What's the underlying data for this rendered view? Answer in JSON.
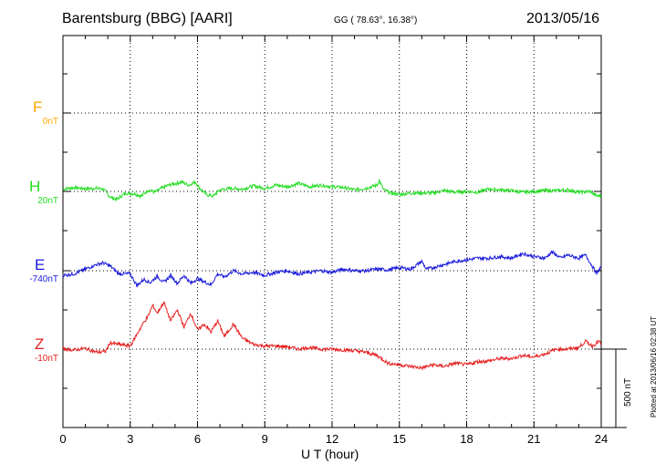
{
  "header": {
    "title": "Barentsburg (BBG)  [AARI]",
    "coords": "GG ( 78.63°,  16.38°)",
    "date": "2013/05/16"
  },
  "footer": {
    "xlabel": "U T (hour)",
    "credit": "Plotted at 2013/06/16 02:38 UT",
    "scale_label": "500 nT"
  },
  "chart_data": {
    "type": "line",
    "title": "Barentsburg (BBG)  [AARI]",
    "xlabel": "U T (hour)",
    "xlim": [
      0,
      24
    ],
    "x_ticks": [
      0,
      3,
      6,
      9,
      12,
      15,
      18,
      21,
      24
    ],
    "y_units": "nT",
    "scale_bar_nT": 500,
    "grid": true,
    "series": [
      {
        "name": "F",
        "baseline_label": "0nT",
        "color": "#ffa500",
        "values": []
      },
      {
        "name": "H",
        "baseline_label": "20nT",
        "color": "#22dd22",
        "x": [
          0,
          0.5,
          1,
          1.5,
          1.8,
          2.1,
          2.4,
          2.8,
          3.2,
          3.5,
          3.8,
          4.1,
          4.4,
          4.7,
          5,
          5.3,
          5.6,
          5.9,
          6.1,
          6.4,
          6.7,
          7,
          7.5,
          8,
          8.5,
          9,
          9.5,
          10,
          10.5,
          11,
          11.5,
          12,
          12.5,
          13,
          13.5,
          14,
          14.1,
          14.3,
          14.6,
          15,
          15.5,
          16,
          16.5,
          17,
          17.5,
          18,
          18.5,
          19,
          19.5,
          20,
          20.5,
          21,
          21.5,
          22,
          22.5,
          23,
          23.5,
          23.8,
          24
        ],
        "values": [
          15,
          25,
          18,
          20,
          15,
          -35,
          -50,
          -10,
          -15,
          -30,
          10,
          -5,
          20,
          40,
          50,
          60,
          40,
          60,
          20,
          -20,
          -30,
          10,
          20,
          15,
          35,
          20,
          40,
          30,
          50,
          30,
          40,
          30,
          25,
          10,
          20,
          40,
          70,
          10,
          -10,
          -20,
          -10,
          -10,
          -10,
          5,
          -5,
          0,
          -5,
          15,
          10,
          5,
          -5,
          0,
          5,
          5,
          10,
          -5,
          0,
          -30,
          -25
        ]
      },
      {
        "name": "E",
        "baseline_label": "-740nT",
        "color": "#1a1add",
        "x": [
          0,
          0.5,
          1,
          1.5,
          1.8,
          2.1,
          2.5,
          3,
          3.3,
          3.6,
          3.9,
          4.2,
          4.5,
          4.8,
          5.1,
          5.4,
          5.7,
          6,
          6.3,
          6.6,
          6.9,
          7.2,
          7.6,
          8,
          8.5,
          9,
          9.5,
          10,
          10.5,
          11,
          11.5,
          12,
          12.5,
          13,
          13.5,
          14,
          14.5,
          15,
          15.5,
          16,
          16.2,
          16.5,
          17,
          17.5,
          18,
          18.5,
          19,
          19.5,
          20,
          20.5,
          21,
          21.5,
          21.8,
          22.2,
          22.5,
          23,
          23.3,
          23.6,
          23.8,
          24
        ],
        "values": [
          -30,
          -20,
          10,
          40,
          50,
          30,
          -20,
          -20,
          -95,
          -55,
          -75,
          -35,
          -75,
          -30,
          -80,
          -30,
          -80,
          -50,
          -70,
          -90,
          -20,
          -40,
          0,
          -20,
          -10,
          -30,
          -10,
          0,
          -20,
          -10,
          0,
          -10,
          10,
          0,
          0,
          10,
          5,
          20,
          10,
          60,
          10,
          20,
          40,
          60,
          70,
          80,
          80,
          90,
          80,
          110,
          90,
          80,
          120,
          80,
          100,
          80,
          100,
          30,
          -20,
          30
        ]
      },
      {
        "name": "Z",
        "baseline_label": "-10nT",
        "color": "#e61e1e",
        "x": [
          0,
          0.5,
          1,
          1.5,
          1.9,
          2.1,
          2.5,
          3,
          3.4,
          3.6,
          3.8,
          4,
          4.2,
          4.5,
          4.8,
          5.1,
          5.4,
          5.7,
          6,
          6.3,
          6.6,
          6.9,
          7.2,
          7.6,
          8,
          8.5,
          9,
          9.5,
          10,
          10.5,
          11,
          11.5,
          12,
          12.5,
          13,
          13.5,
          14,
          14.5,
          15,
          15.5,
          16,
          16.5,
          17,
          17.5,
          18,
          18.5,
          19,
          19.5,
          20,
          20.5,
          21,
          21.5,
          22,
          22.5,
          23,
          23.3,
          23.6,
          23.9,
          24
        ],
        "values": [
          0,
          -5,
          5,
          -20,
          -15,
          40,
          30,
          20,
          120,
          170,
          210,
          280,
          230,
          300,
          180,
          250,
          140,
          230,
          120,
          160,
          110,
          180,
          80,
          160,
          70,
          30,
          20,
          20,
          15,
          0,
          10,
          0,
          0,
          -5,
          -10,
          -20,
          -40,
          -90,
          -100,
          -110,
          -120,
          -100,
          -110,
          -90,
          -100,
          -80,
          -75,
          -60,
          -60,
          -40,
          -50,
          -30,
          0,
          0,
          10,
          50,
          20,
          50,
          30
        ]
      }
    ]
  }
}
